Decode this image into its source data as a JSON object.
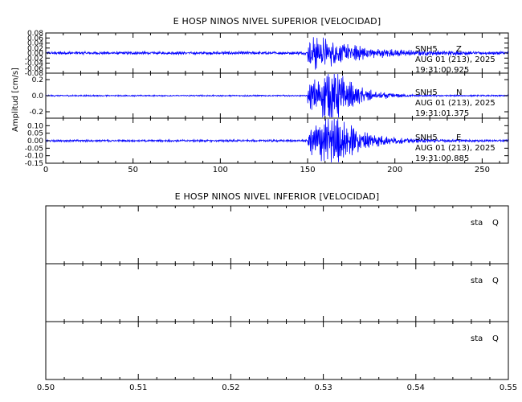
{
  "colors": {
    "trace": "#0000ff",
    "axis": "#000000",
    "background": "#ffffff"
  },
  "chart_data": [
    {
      "type": "line",
      "title": "E HOSP NINOS NIVEL SUPERIOR [VELOCIDAD]",
      "ylabel": "Amplitud [cm/s]",
      "xlim": [
        0,
        265
      ],
      "x_ticks": [
        "0",
        "50",
        "100",
        "150",
        "200",
        "250"
      ],
      "panels": [
        {
          "station": "SNH5",
          "component": "Z",
          "date": "AUG 01 (213), 2025",
          "time": "19:31:00.925",
          "ylim": [
            -0.08,
            0.08
          ],
          "y_ticks": [
            "0.08",
            "0.06",
            "0.04",
            "0.02",
            "0.00",
            "-0.02",
            "-0.04",
            "-0.06",
            "-0.08"
          ],
          "trace": {
            "event_start": 150,
            "peak": 0.05,
            "noise": 0.004,
            "decay": 22,
            "peak_time": 153
          }
        },
        {
          "station": "SNH5",
          "component": "N",
          "date": "AUG 01 (213), 2025",
          "time": "19:31:01.375",
          "ylim": [
            -0.28,
            0.28
          ],
          "y_ticks": [
            "0.2",
            "0.0",
            "-0.2"
          ],
          "trace": {
            "event_start": 150,
            "peak": 0.24,
            "noise": 0.006,
            "decay": 12,
            "peak_time": 165
          }
        },
        {
          "station": "SNH5",
          "component": "E",
          "date": "AUG 01 (213), 2025",
          "time": "19:31:00.885",
          "ylim": [
            -0.15,
            0.15
          ],
          "y_ticks": [
            "0.10",
            "0.05",
            "0.00",
            "-0.05",
            "-0.10",
            "-0.15"
          ],
          "trace": {
            "event_start": 150,
            "peak": 0.13,
            "noise": 0.005,
            "decay": 14,
            "peak_time": 165
          }
        }
      ]
    },
    {
      "type": "line",
      "title": "E HOSP NINOS NIVEL INFERIOR [VELOCIDAD]",
      "xlim": [
        0.5,
        0.55
      ],
      "x_ticks": [
        "0.50",
        "0.51",
        "0.52",
        "0.53",
        "0.54",
        "0.55"
      ],
      "panels": [
        {
          "station": "sta",
          "component": "Q"
        },
        {
          "station": "sta",
          "component": "Q"
        },
        {
          "station": "sta",
          "component": "Q"
        }
      ]
    }
  ]
}
